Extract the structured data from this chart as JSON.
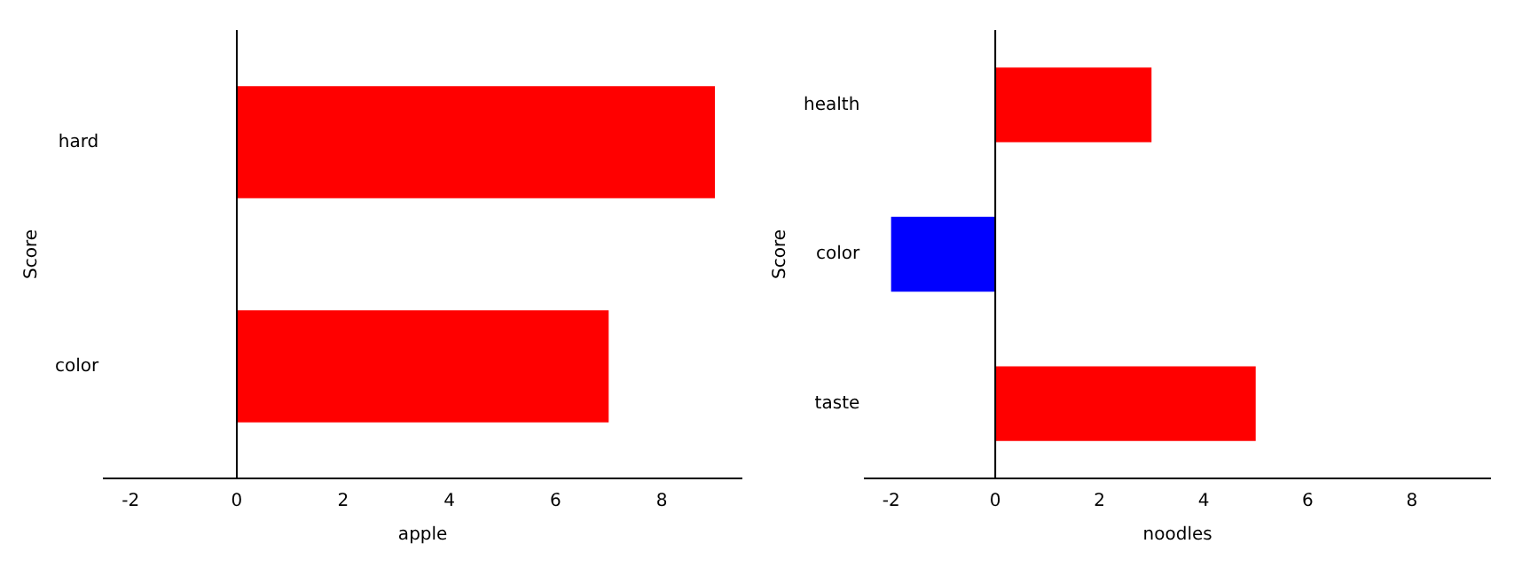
{
  "chart_data": [
    {
      "type": "bar",
      "orientation": "horizontal",
      "categories": [
        "hard",
        "color"
      ],
      "values": [
        9,
        7
      ],
      "colors": [
        "#ff0000",
        "#ff0000"
      ],
      "xlim": [
        -2.5,
        9.5
      ],
      "xticks": [
        -2,
        0,
        2,
        4,
        6,
        8
      ],
      "xlabel": "apple",
      "ylabel": "Score"
    },
    {
      "type": "bar",
      "orientation": "horizontal",
      "categories": [
        "health",
        "color",
        "taste"
      ],
      "values": [
        3,
        -2,
        5
      ],
      "colors": [
        "#ff0000",
        "#0000ff",
        "#ff0000"
      ],
      "xlim": [
        -2.5,
        9.5
      ],
      "xticks": [
        -2,
        0,
        2,
        4,
        6,
        8
      ],
      "xlabel": "noodles",
      "ylabel": "Score"
    }
  ]
}
